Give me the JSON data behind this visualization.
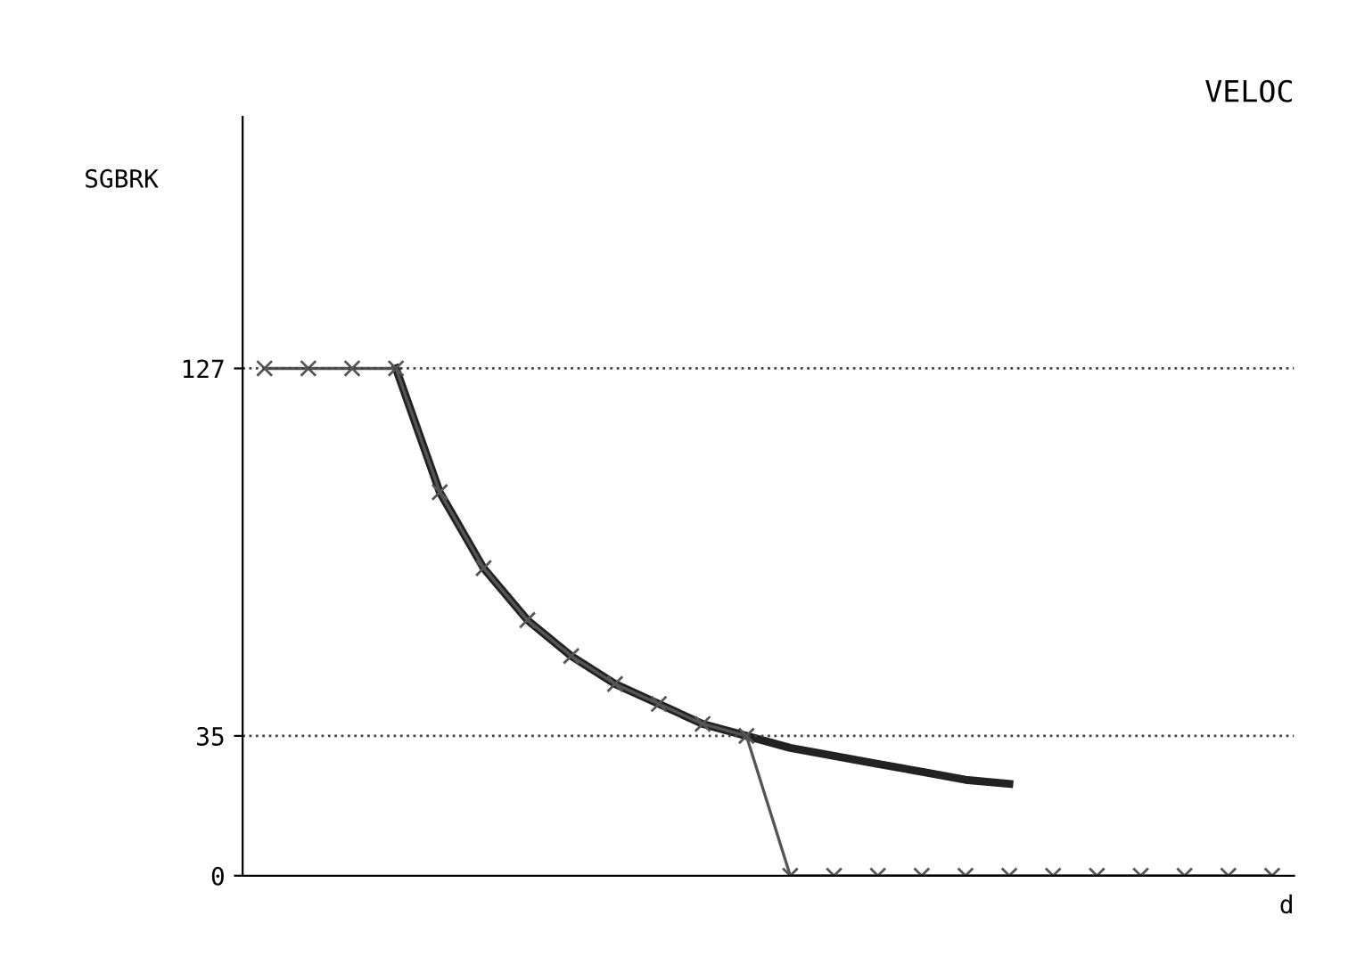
{
  "chart_data": {
    "type": "line",
    "title": "VELOC",
    "xlabel": "d",
    "ylabel": "SGBRK",
    "categories": [
      null,
      null,
      null,
      null,
      null,
      null,
      null,
      null,
      null,
      null,
      null,
      null,
      null,
      null,
      null,
      null,
      null,
      null,
      null,
      null,
      null,
      null,
      null,
      null
    ],
    "series": [
      {
        "color": "#222222",
        "marker": "none",
        "line_style": "solid",
        "values": [
          null,
          null,
          null,
          127,
          96,
          77,
          64,
          55,
          48,
          43,
          38,
          35,
          32,
          30,
          28,
          26,
          24,
          23,
          null,
          null,
          null,
          null,
          null,
          null
        ]
      },
      {
        "color": "#555555",
        "marker": "cross",
        "line_style": "solid",
        "values": [
          127,
          127,
          127,
          127,
          96,
          77,
          64,
          55,
          48,
          43,
          38,
          35,
          0,
          0,
          0,
          0,
          0,
          0,
          0,
          0,
          0,
          0,
          0,
          0
        ]
      }
    ],
    "ylim": [
      0,
      190
    ],
    "yticks": [
      0,
      35,
      127
    ],
    "grid": false,
    "legend": false,
    "ref_lines": [
      {
        "axis": "y",
        "value": 127,
        "line_style": "dotted",
        "color": "#444444"
      },
      {
        "axis": "y",
        "value": 35,
        "line_style": "dotted",
        "color": "#444444"
      }
    ]
  }
}
